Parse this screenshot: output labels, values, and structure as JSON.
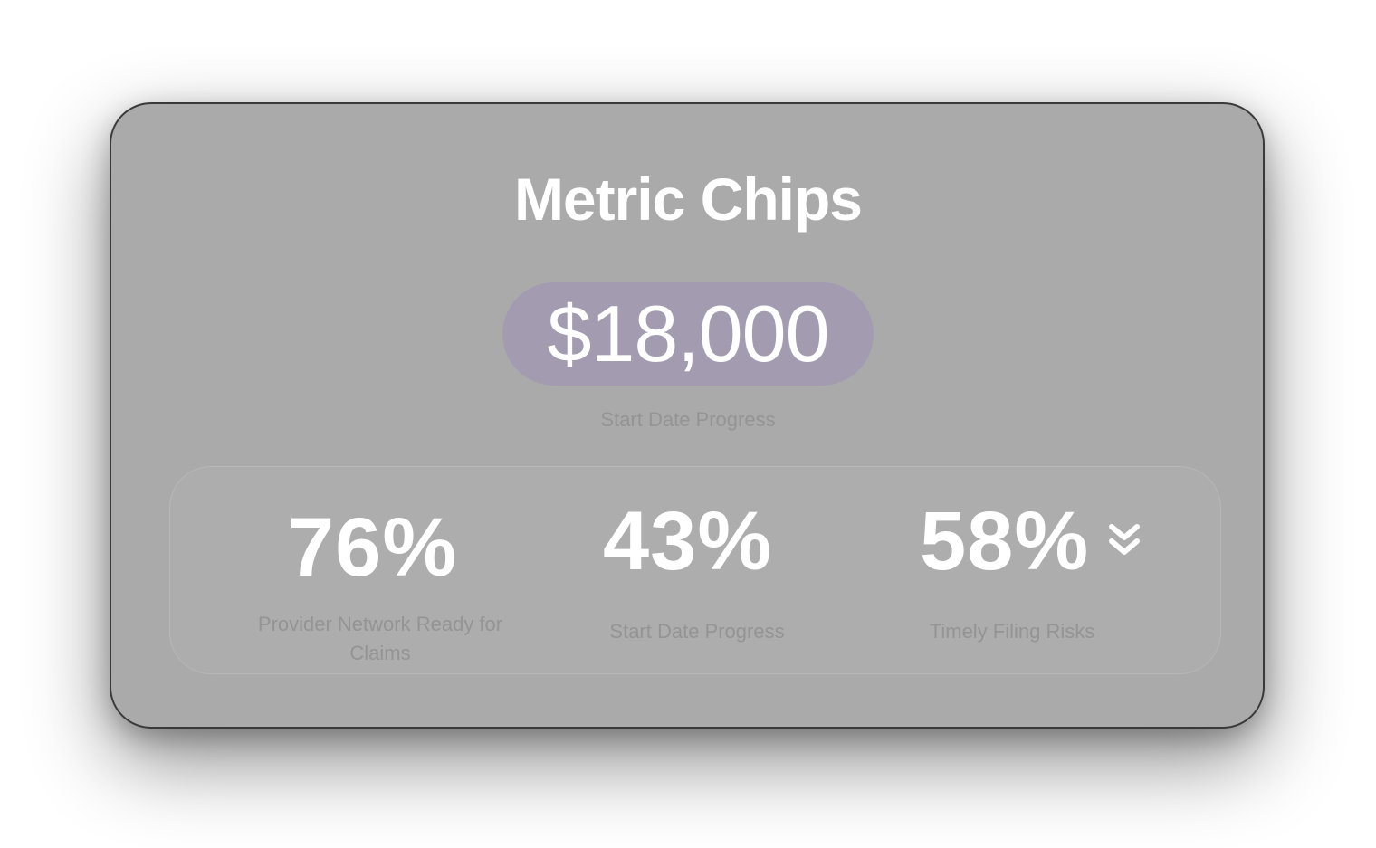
{
  "title": "Metric Chips",
  "hero": {
    "value": "$18,000",
    "label": "Start Date Progress"
  },
  "metrics": [
    {
      "value": "76%",
      "label": "Provider Network Ready for Claims"
    },
    {
      "value": "43%",
      "label": "Start Date Progress"
    },
    {
      "value": "58%",
      "label": "Timely Filing Risks",
      "trend_icon": "double-chevron-down-icon"
    }
  ],
  "colors": {
    "card_background": "#aaaaaa",
    "hero_chip": "#a39cb1",
    "value_text": "#ffffff",
    "label_text": "#949494"
  }
}
